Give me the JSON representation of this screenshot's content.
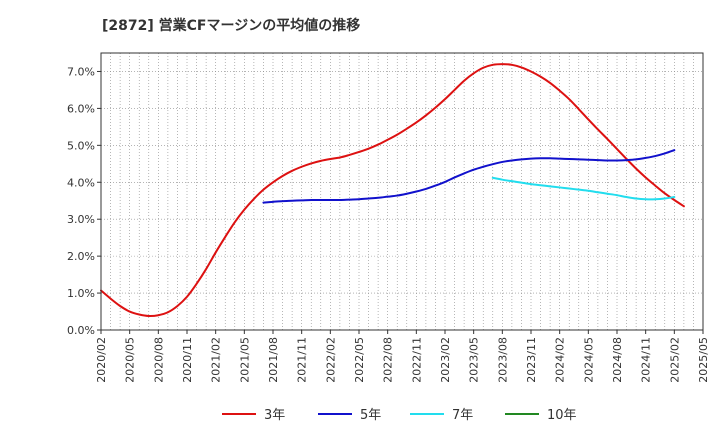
{
  "chart_data": {
    "type": "line",
    "title": "[2872]  営業CFマージンの平均値の推移",
    "xlabel": "",
    "ylabel": "",
    "ylim": [
      0,
      0.075
    ],
    "yticks": [
      0.0,
      0.01,
      0.02,
      0.03,
      0.04,
      0.05,
      0.06,
      0.07
    ],
    "ytick_labels": [
      "0.0%",
      "1.0%",
      "2.0%",
      "3.0%",
      "4.0%",
      "5.0%",
      "6.0%",
      "7.0%"
    ],
    "xlim": [
      "2020/02",
      "2025/05"
    ],
    "xtick_labels": [
      "2020/02",
      "2020/05",
      "2020/08",
      "2020/11",
      "2021/02",
      "2021/05",
      "2021/08",
      "2021/11",
      "2022/02",
      "2022/05",
      "2022/08",
      "2022/11",
      "2023/02",
      "2023/05",
      "2023/08",
      "2023/11",
      "2024/02",
      "2024/05",
      "2024/08",
      "2024/11",
      "2025/02",
      "2025/05"
    ],
    "grid": true,
    "legend_position": "bottom",
    "series": [
      {
        "name": "3年",
        "color": "#dd1111",
        "points": [
          [
            "2020/02",
            0.0107
          ],
          [
            "2020/03",
            0.0085
          ],
          [
            "2020/04",
            0.0065
          ],
          [
            "2020/05",
            0.005
          ],
          [
            "2020/06",
            0.0042
          ],
          [
            "2020/07",
            0.0038
          ],
          [
            "2020/08",
            0.004
          ],
          [
            "2020/09",
            0.0048
          ],
          [
            "2020/10",
            0.0065
          ],
          [
            "2020/11",
            0.009
          ],
          [
            "2020/12",
            0.0125
          ],
          [
            "2021/01",
            0.0165
          ],
          [
            "2021/02",
            0.021
          ],
          [
            "2021/03",
            0.0252
          ],
          [
            "2021/04",
            0.0292
          ],
          [
            "2021/05",
            0.0326
          ],
          [
            "2021/06",
            0.0355
          ],
          [
            "2021/07",
            0.038
          ],
          [
            "2021/08",
            0.04
          ],
          [
            "2021/09",
            0.0417
          ],
          [
            "2021/10",
            0.0431
          ],
          [
            "2021/11",
            0.0442
          ],
          [
            "2021/12",
            0.0451
          ],
          [
            "2022/01",
            0.0458
          ],
          [
            "2022/02",
            0.0463
          ],
          [
            "2022/03",
            0.0467
          ],
          [
            "2022/04",
            0.0474
          ],
          [
            "2022/05",
            0.0482
          ],
          [
            "2022/06",
            0.0491
          ],
          [
            "2022/07",
            0.0502
          ],
          [
            "2022/08",
            0.0515
          ],
          [
            "2022/09",
            0.0529
          ],
          [
            "2022/10",
            0.0545
          ],
          [
            "2022/11",
            0.0562
          ],
          [
            "2022/12",
            0.0581
          ],
          [
            "2023/01",
            0.0602
          ],
          [
            "2023/02",
            0.0625
          ],
          [
            "2023/03",
            0.065
          ],
          [
            "2023/04",
            0.0675
          ],
          [
            "2023/05",
            0.0695
          ],
          [
            "2023/06",
            0.071
          ],
          [
            "2023/07",
            0.0718
          ],
          [
            "2023/08",
            0.072
          ],
          [
            "2023/09",
            0.0718
          ],
          [
            "2023/10",
            0.0711
          ],
          [
            "2023/11",
            0.07
          ],
          [
            "2023/12",
            0.0686
          ],
          [
            "2024/01",
            0.0669
          ],
          [
            "2024/02",
            0.0648
          ],
          [
            "2024/03",
            0.0625
          ],
          [
            "2024/04",
            0.0598
          ],
          [
            "2024/05",
            0.057
          ],
          [
            "2024/06",
            0.0543
          ],
          [
            "2024/07",
            0.0517
          ],
          [
            "2024/08",
            0.049
          ],
          [
            "2024/09",
            0.0463
          ],
          [
            "2024/10",
            0.0437
          ],
          [
            "2024/11",
            0.0413
          ],
          [
            "2024/12",
            0.0391
          ],
          [
            "2025/01",
            0.037
          ],
          [
            "2025/02",
            0.0352
          ],
          [
            "2025/03",
            0.0335
          ]
        ]
      },
      {
        "name": "5年",
        "color": "#1111cc",
        "points": [
          [
            "2021/07",
            0.0345
          ],
          [
            "2021/08",
            0.0347
          ],
          [
            "2021/09",
            0.0349
          ],
          [
            "2021/10",
            0.035
          ],
          [
            "2021/11",
            0.0351
          ],
          [
            "2021/12",
            0.0352
          ],
          [
            "2022/01",
            0.0352
          ],
          [
            "2022/02",
            0.0352
          ],
          [
            "2022/03",
            0.0352
          ],
          [
            "2022/04",
            0.0353
          ],
          [
            "2022/05",
            0.0354
          ],
          [
            "2022/06",
            0.0356
          ],
          [
            "2022/07",
            0.0358
          ],
          [
            "2022/08",
            0.0361
          ],
          [
            "2022/09",
            0.0364
          ],
          [
            "2022/10",
            0.0369
          ],
          [
            "2022/11",
            0.0375
          ],
          [
            "2022/12",
            0.0382
          ],
          [
            "2023/01",
            0.0391
          ],
          [
            "2023/02",
            0.0401
          ],
          [
            "2023/03",
            0.0413
          ],
          [
            "2023/04",
            0.0424
          ],
          [
            "2023/05",
            0.0434
          ],
          [
            "2023/06",
            0.0442
          ],
          [
            "2023/07",
            0.0449
          ],
          [
            "2023/08",
            0.0455
          ],
          [
            "2023/09",
            0.0459
          ],
          [
            "2023/10",
            0.0462
          ],
          [
            "2023/11",
            0.0464
          ],
          [
            "2023/12",
            0.0465
          ],
          [
            "2024/01",
            0.0465
          ],
          [
            "2024/02",
            0.0464
          ],
          [
            "2024/03",
            0.0463
          ],
          [
            "2024/04",
            0.0462
          ],
          [
            "2024/05",
            0.0461
          ],
          [
            "2024/06",
            0.046
          ],
          [
            "2024/07",
            0.0459
          ],
          [
            "2024/08",
            0.0459
          ],
          [
            "2024/09",
            0.046
          ],
          [
            "2024/10",
            0.0462
          ],
          [
            "2024/11",
            0.0466
          ],
          [
            "2024/12",
            0.0471
          ],
          [
            "2025/01",
            0.0478
          ],
          [
            "2025/02",
            0.0487
          ]
        ]
      },
      {
        "name": "7年",
        "color": "#22ddee",
        "points": [
          [
            "2023/07",
            0.0412
          ],
          [
            "2023/08",
            0.0407
          ],
          [
            "2023/09",
            0.0403
          ],
          [
            "2023/10",
            0.0399
          ],
          [
            "2023/11",
            0.0395
          ],
          [
            "2023/12",
            0.0392
          ],
          [
            "2024/01",
            0.0389
          ],
          [
            "2024/02",
            0.0386
          ],
          [
            "2024/03",
            0.0383
          ],
          [
            "2024/04",
            0.038
          ],
          [
            "2024/05",
            0.0377
          ],
          [
            "2024/06",
            0.0373
          ],
          [
            "2024/07",
            0.0369
          ],
          [
            "2024/08",
            0.0365
          ],
          [
            "2024/09",
            0.036
          ],
          [
            "2024/10",
            0.0356
          ],
          [
            "2024/11",
            0.0354
          ],
          [
            "2024/12",
            0.0354
          ],
          [
            "2025/01",
            0.0356
          ],
          [
            "2025/02",
            0.036
          ]
        ]
      },
      {
        "name": "10年",
        "color": "#228822",
        "points": []
      }
    ]
  }
}
